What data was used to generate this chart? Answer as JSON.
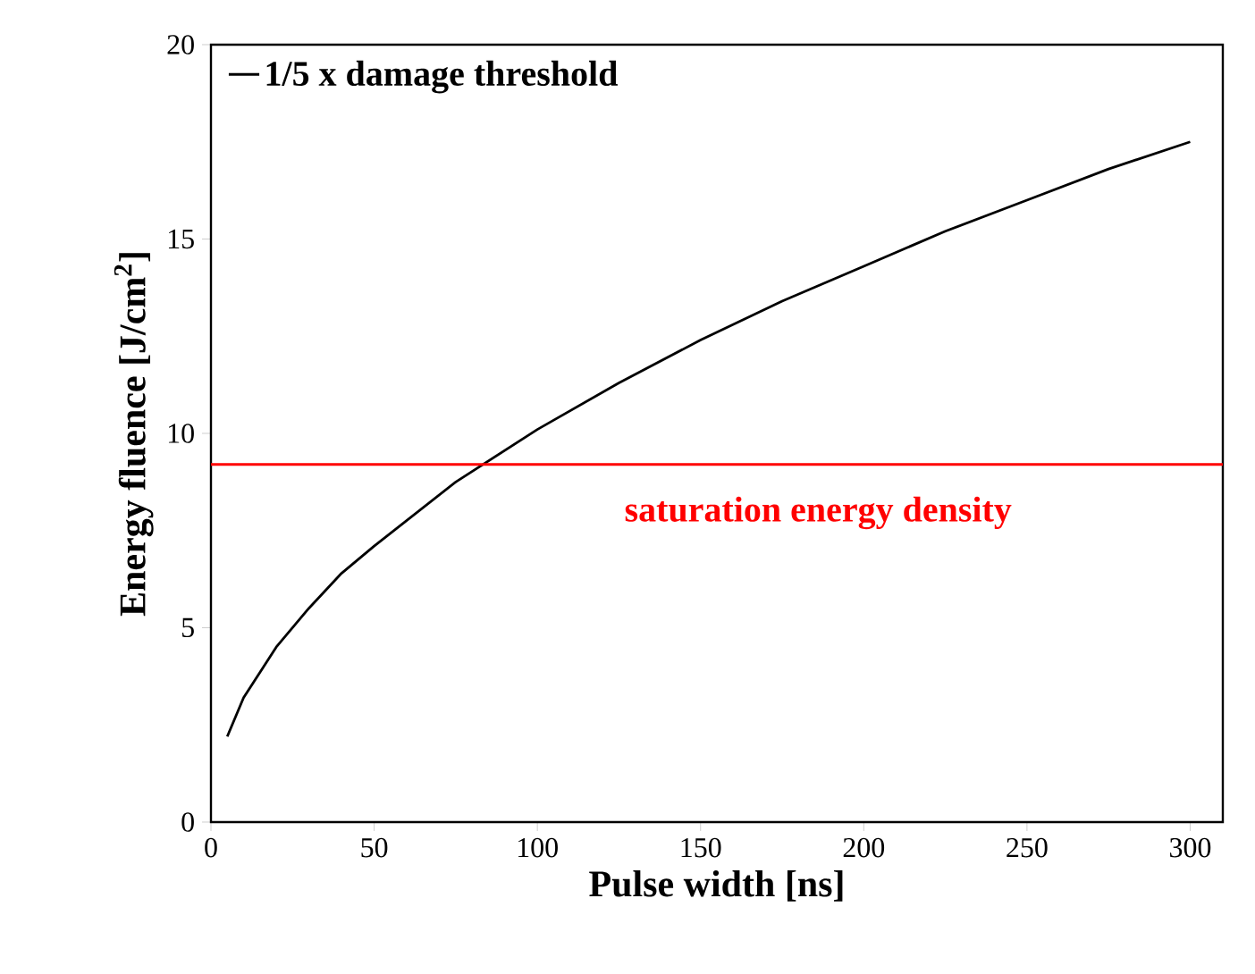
{
  "chart_data": {
    "type": "line",
    "xlabel": "Pulse width [ns]",
    "ylabel": "Energy fluence [J/cm$^{2}$]",
    "xlim": [
      0,
      310
    ],
    "ylim": [
      0,
      20
    ],
    "xticks": [
      0,
      50,
      100,
      150,
      200,
      250,
      300
    ],
    "yticks": [
      0,
      5,
      10,
      15,
      20
    ],
    "legend": "top left",
    "grid": false,
    "marker": "none",
    "line_style": "solid",
    "series": [
      {
        "name": "1/5 x damage threshold",
        "color": "#000000",
        "x": [
          5,
          10,
          20,
          30,
          40,
          50,
          75,
          100,
          125,
          150,
          175,
          200,
          225,
          250,
          275,
          300
        ],
        "values": [
          2.2,
          3.2,
          4.5,
          5.5,
          6.4,
          7.1,
          8.75,
          10.1,
          11.3,
          12.4,
          13.4,
          14.3,
          15.2,
          16.0,
          16.8,
          17.5
        ]
      }
    ],
    "ref_lines": [
      {
        "axis": "y",
        "value": 9.2,
        "label": "saturation energy density",
        "color": "#ff0000"
      }
    ]
  }
}
